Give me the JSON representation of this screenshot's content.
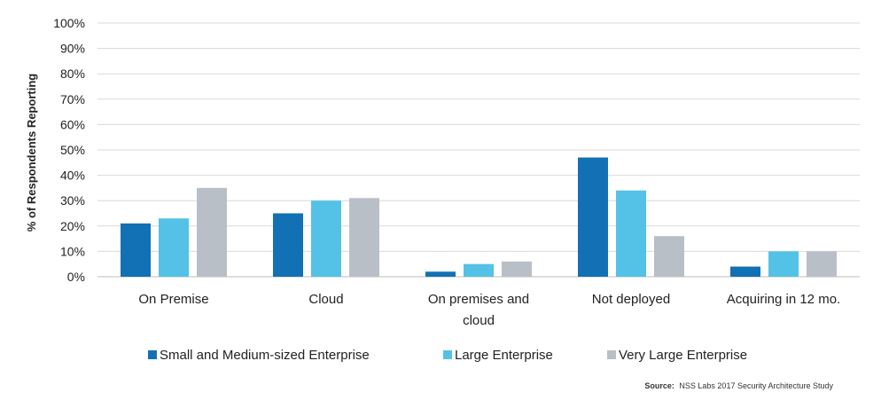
{
  "chart_data": {
    "type": "bar",
    "categories": [
      "On Premise",
      "Cloud",
      "On premises and cloud",
      "Not deployed",
      "Acquiring in 12 mo."
    ],
    "category_lines": [
      [
        "On Premise"
      ],
      [
        "Cloud"
      ],
      [
        "On premises and",
        "cloud"
      ],
      [
        "Not deployed"
      ],
      [
        "Acquiring in 12 mo."
      ]
    ],
    "series": [
      {
        "name": "Small and Medium-sized Enterprise",
        "color": "#1270b5",
        "values": [
          21,
          25,
          2,
          47,
          4
        ]
      },
      {
        "name": "Large Enterprise",
        "color": "#54c2e6",
        "values": [
          23,
          30,
          5,
          34,
          10
        ]
      },
      {
        "name": "Very Large Enterprise",
        "color": "#b9bfc7",
        "values": [
          35,
          31,
          6,
          16,
          10
        ]
      }
    ],
    "ylabel": "% of Respondents Reporting",
    "ylim": [
      0,
      100
    ],
    "yticks": [
      "0%",
      "10%",
      "20%",
      "30%",
      "40%",
      "50%",
      "60%",
      "70%",
      "80%",
      "90%",
      "100%"
    ],
    "grid": true,
    "legend_position": "bottom"
  },
  "source": {
    "label": "Source:",
    "text": "NSS Labs 2017 Security Architecture Study"
  }
}
